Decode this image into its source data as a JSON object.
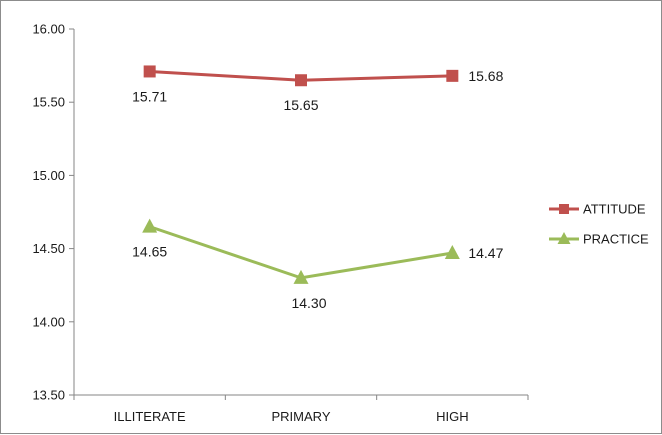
{
  "chart_data": {
    "type": "line",
    "categories": [
      "ILLITERATE",
      "PRIMARY",
      "HIGH"
    ],
    "ylim": [
      13.5,
      16.0
    ],
    "yticks": [
      "13.50",
      "14.00",
      "14.50",
      "15.00",
      "15.50",
      "16.00"
    ],
    "ytick_values": [
      13.5,
      14.0,
      14.5,
      15.0,
      15.5,
      16.0
    ],
    "grid": false,
    "legend_position": "right",
    "series": [
      {
        "name": "ATTITUDE",
        "values": [
          15.71,
          15.65,
          15.68
        ],
        "labels": [
          "15.71",
          "15.65",
          "15.68"
        ],
        "color": "#c0504d",
        "marker": "square"
      },
      {
        "name": "PRACTICE",
        "values": [
          14.65,
          14.3,
          14.47
        ],
        "labels": [
          "14.65",
          "14.30",
          "14.47"
        ],
        "color": "#9bbb59",
        "marker": "triangle"
      }
    ]
  }
}
